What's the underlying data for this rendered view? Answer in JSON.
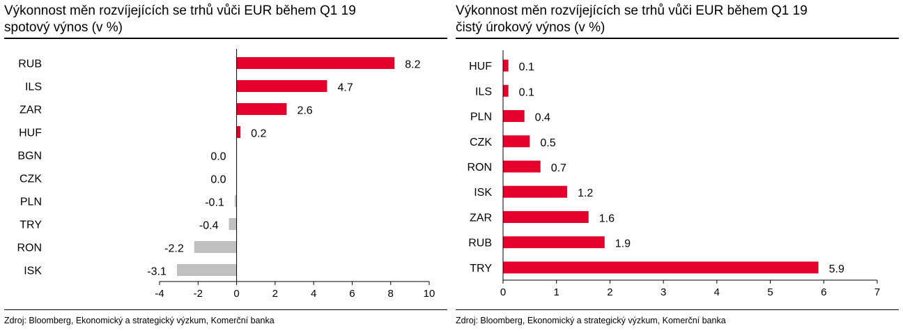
{
  "panels": [
    {
      "title_line1": "Výkonnost měn rozvíjejících se trhů vůči EUR během Q1 19",
      "title_line2": "spotový výnos (v %)",
      "source": "Zdroj: Bloomberg, Ekonomický a strategický výzkum, Komerční banka"
    },
    {
      "title_line1": "Výkonnost měn rozvíjejících se trhů vůči EUR během Q1 19",
      "title_line2": "čistý úrokový výnos (v %)",
      "source": "Zdroj: Bloomberg, Ekonomický a strategický výzkum, Komerční banka"
    }
  ],
  "colors": {
    "positive": "#e4002b",
    "negative": "#c0c0c0",
    "axis": "#000000"
  },
  "chart_data": [
    {
      "type": "bar",
      "orientation": "horizontal",
      "title": "Výkonnost měn rozvíjejících se trhů vůči EUR během Q1 19",
      "subtitle": "spotový výnos (v %)",
      "categories": [
        "RUB",
        "ILS",
        "ZAR",
        "HUF",
        "BGN",
        "CZK",
        "PLN",
        "TRY",
        "RON",
        "ISK"
      ],
      "values": [
        8.2,
        4.7,
        2.6,
        0.2,
        0.0,
        0.0,
        -0.1,
        -0.4,
        -2.2,
        -3.1
      ],
      "labels": [
        "8.2",
        "4.7",
        "2.6",
        "0.2",
        "0.0",
        "0.0",
        "-0.1",
        "-0.4",
        "-2.2",
        "-3.1"
      ],
      "xlim": [
        -4,
        10
      ],
      "xticks": [
        -4,
        -2,
        0,
        2,
        4,
        6,
        8,
        10
      ],
      "grid": false
    },
    {
      "type": "bar",
      "orientation": "horizontal",
      "title": "Výkonnost měn rozvíjejících se trhů vůči EUR během Q1 19",
      "subtitle": "čistý úrokový výnos (v %)",
      "categories": [
        "HUF",
        "ILS",
        "PLN",
        "CZK",
        "RON",
        "ISK",
        "ZAR",
        "RUB",
        "TRY"
      ],
      "values": [
        0.1,
        0.1,
        0.4,
        0.5,
        0.7,
        1.2,
        1.6,
        1.9,
        5.9
      ],
      "labels": [
        "0.1",
        "0.1",
        "0.4",
        "0.5",
        "0.7",
        "1.2",
        "1.6",
        "1.9",
        "5.9"
      ],
      "xlim": [
        0,
        7
      ],
      "xticks": [
        0,
        1,
        2,
        3,
        4,
        5,
        6,
        7
      ],
      "grid": false
    }
  ]
}
